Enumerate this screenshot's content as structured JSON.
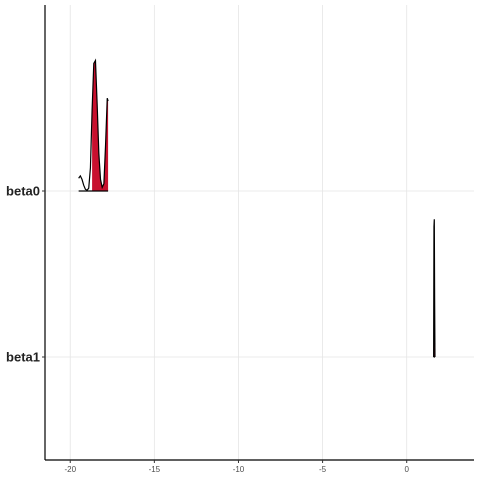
{
  "chart_data": {
    "type": "area",
    "title": "",
    "xlabel": "",
    "ylabel": "",
    "xlim": [
      -21.5,
      4
    ],
    "x_ticks": [
      -20,
      -15,
      -10,
      -5,
      0
    ],
    "x_tick_labels": [
      "-20",
      "-15",
      "-10",
      "-5",
      "0"
    ],
    "categories": [
      "beta0",
      "beta1"
    ],
    "grid": true,
    "legend": "none",
    "colors": {
      "fill": "#c8102e",
      "line": "#000000",
      "grid": "#e5e5e5",
      "axis": "#000000"
    },
    "series": [
      {
        "category": "beta0",
        "curve": [
          [
            -19.5,
            0.088
          ],
          [
            -19.4,
            0.104
          ],
          [
            -19.3,
            0.08
          ],
          [
            -19.2,
            0.04
          ],
          [
            -19.1,
            0.012
          ],
          [
            -19.0,
            0.005
          ],
          [
            -18.9,
            0.02
          ],
          [
            -18.8,
            0.16
          ],
          [
            -18.7,
            0.56
          ],
          [
            -18.6,
            0.88
          ],
          [
            -18.5,
            0.9
          ],
          [
            -18.4,
            0.6
          ],
          [
            -18.3,
            0.26
          ],
          [
            -18.2,
            0.08
          ],
          [
            -18.1,
            0.025
          ],
          [
            -18.0,
            0.05
          ],
          [
            -17.9,
            0.32
          ],
          [
            -17.8,
            0.64
          ],
          [
            -17.75,
            0.62
          ]
        ],
        "shaded": [
          -18.7,
          -17.75
        ]
      },
      {
        "category": "beta1",
        "curve": [
          [
            1.6,
            0.0
          ],
          [
            1.62,
            0.9
          ],
          [
            1.64,
            0.95
          ],
          [
            1.66,
            0.4
          ],
          [
            1.68,
            0.0
          ]
        ],
        "shaded": [
          1.6,
          1.68
        ]
      }
    ]
  }
}
